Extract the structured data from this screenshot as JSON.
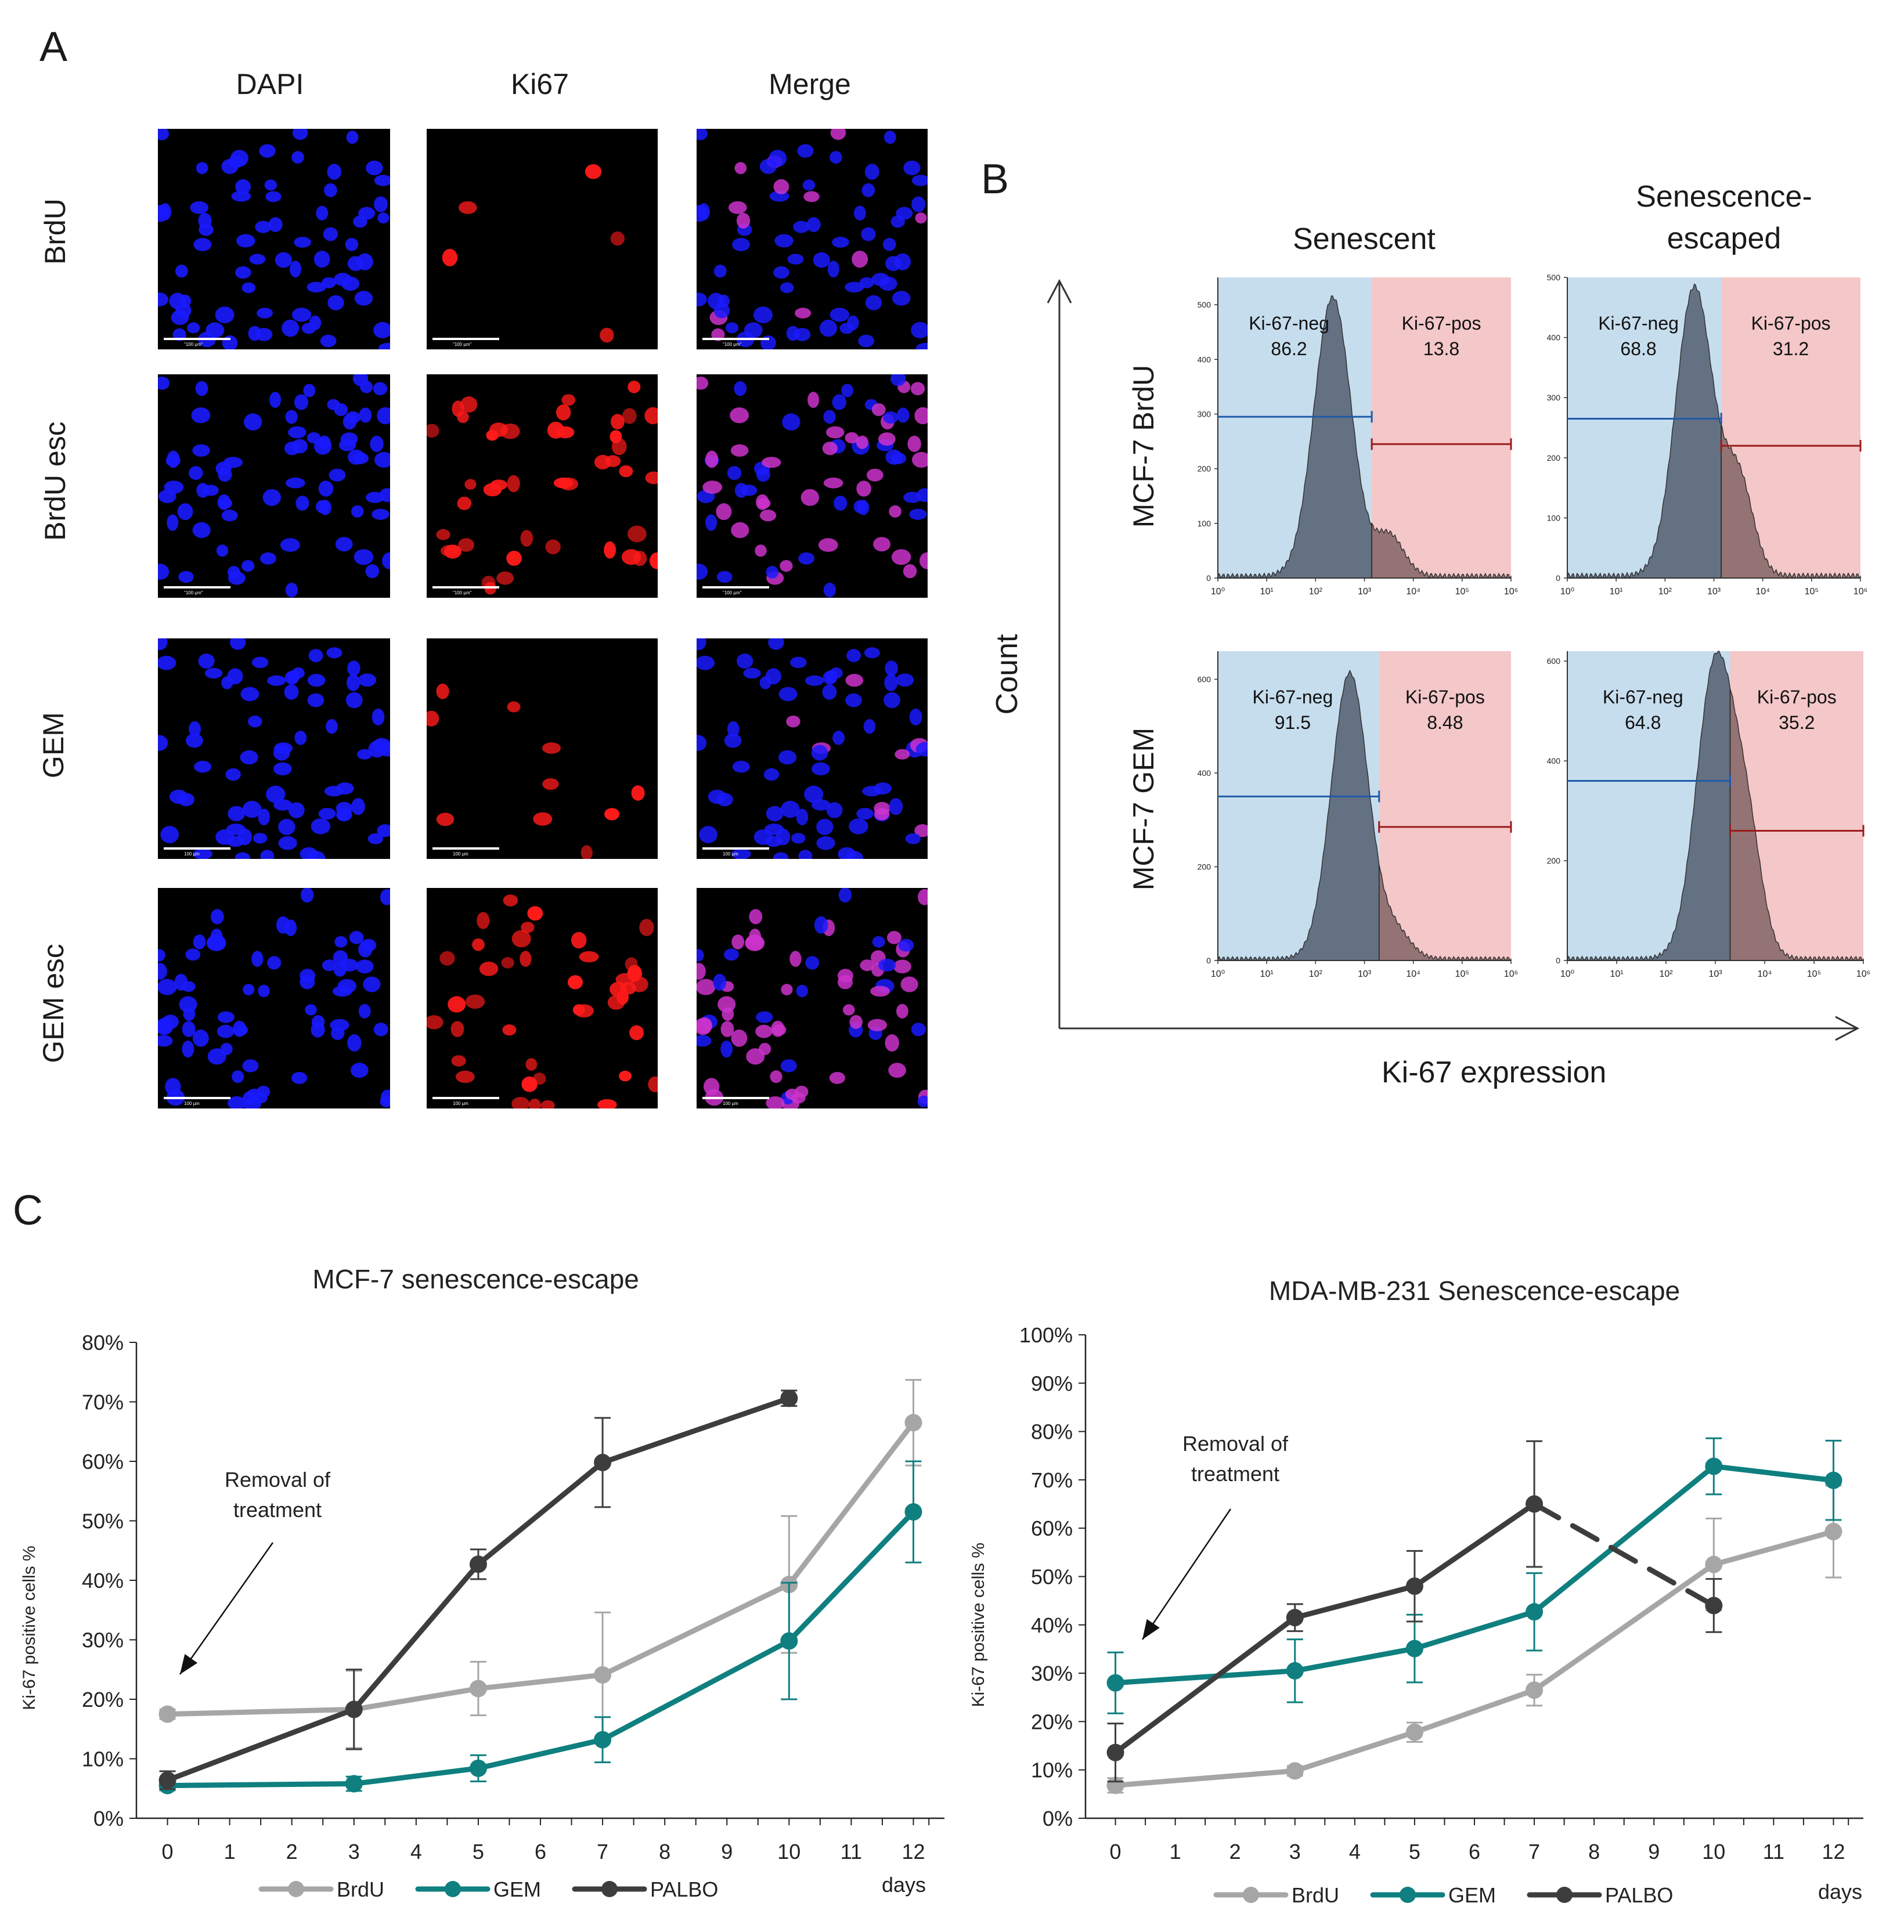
{
  "panel_a": {
    "letter": "A",
    "columns": [
      "DAPI",
      "Ki67",
      "Merge"
    ],
    "rows": [
      "BrdU",
      "BrdU esc",
      "GEM",
      "GEM esc"
    ],
    "scale_bars": [
      [
        "\"100 µm\"",
        "\"100 µm\"",
        "\"100 µm\""
      ],
      [
        "\"100 µm\"",
        "\"100 µm\"",
        "\"100 µm\""
      ],
      [
        "100 µm",
        "100 µm",
        "100 µm"
      ],
      [
        "100 µm",
        "100 µm",
        "100 µm"
      ]
    ],
    "colors": {
      "dapi": "#1a1aff",
      "ki67": "#ff1a1a",
      "merge": "#cc33cc"
    }
  },
  "panel_b": {
    "letter": "B",
    "column_titles": [
      "Senescent",
      "Senescence-\nescaped"
    ],
    "row_titles": [
      "MCF-7 BrdU",
      "MCF-7 GEM"
    ],
    "y_axis_label": "Count",
    "x_axis_label": "Ki-67 expression",
    "x_ticks": [
      "10⁰",
      "10¹",
      "10²",
      "10³",
      "10⁴",
      "10⁵",
      "10⁶"
    ],
    "histograms": [
      {
        "row": 0,
        "col": 0,
        "y_ticks": [
          "0",
          "100",
          "200",
          "300",
          "400",
          "500"
        ],
        "ymax": 550,
        "gate_log": 3.15,
        "neg_label": "Ki-67-neg",
        "neg_value": "86.2",
        "pos_label": "Ki-67-pos",
        "pos_value": "13.8",
        "peak_log": 2.35,
        "peak_count": 510,
        "neg_bar": 295,
        "pos_bar": 245
      },
      {
        "row": 0,
        "col": 1,
        "y_ticks": [
          "0",
          "100",
          "200",
          "300",
          "400",
          "500"
        ],
        "ymax": 500,
        "gate_log": 3.15,
        "neg_label": "Ki-67-neg",
        "neg_value": "68.8",
        "pos_label": "Ki-67-pos",
        "pos_value": "31.2",
        "peak_log": 2.6,
        "peak_count": 480,
        "neg_bar": 265,
        "pos_bar": 220
      },
      {
        "row": 1,
        "col": 0,
        "y_ticks": [
          "0",
          "200",
          "400",
          "600"
        ],
        "ymax": 660,
        "gate_log": 3.3,
        "neg_label": "Ki-67-neg",
        "neg_value": "91.5",
        "pos_label": "Ki-67-pos",
        "pos_value": "8.48",
        "peak_log": 2.7,
        "peak_count": 610,
        "neg_bar": 350,
        "pos_bar": 285
      },
      {
        "row": 1,
        "col": 1,
        "y_ticks": [
          "0",
          "200",
          "400",
          "600"
        ],
        "ymax": 620,
        "gate_log": 3.3,
        "neg_label": "Ki-67-neg",
        "neg_value": "64.8",
        "pos_label": "Ki-67-pos",
        "pos_value": "35.2",
        "peak_log": 3.0,
        "peak_count": 590,
        "neg_bar": 360,
        "pos_bar": 260
      }
    ],
    "colors": {
      "neg_bg": "#c6ddee",
      "pos_bg": "#f4c7c8",
      "fill": "#5a6677",
      "neg_line": "#1f5aa8",
      "pos_line": "#9b1b1b"
    }
  },
  "panel_c": {
    "letter": "C",
    "x_unit_label": "days",
    "annotation": [
      "Removal of",
      "treatment"
    ],
    "colors": {
      "BrdU": "#a6a6a6",
      "GEM": "#0f7f7f",
      "PALBO": "#3d3d3d"
    }
  },
  "chart_data": [
    {
      "type": "line",
      "title": "MCF-7 senescence-escape",
      "xlabel": "days",
      "ylabel": "Ki-67 positive cells %",
      "x_ticks": [
        0,
        1,
        2,
        3,
        4,
        5,
        6,
        7,
        8,
        9,
        10,
        11,
        12
      ],
      "xlim": [
        -0.5,
        12.5
      ],
      "ylim": [
        0,
        80
      ],
      "y_ticks": [
        "0%",
        "10%",
        "20%",
        "30%",
        "40%",
        "50%",
        "60%",
        "70%",
        "80%"
      ],
      "legend_position": "bottom",
      "series": [
        {
          "name": "BrdU",
          "x": [
            0,
            3,
            5,
            7,
            10,
            12
          ],
          "y": [
            17.5,
            18.3,
            21.8,
            24.1,
            39.3,
            66.5
          ],
          "err": [
            0.8,
            6.5,
            4.5,
            10.5,
            11.5,
            7.2
          ],
          "dashed_last": false
        },
        {
          "name": "GEM",
          "x": [
            0,
            3,
            5,
            7,
            10,
            12
          ],
          "y": [
            5.5,
            5.8,
            8.4,
            13.2,
            29.8,
            51.5
          ],
          "err": [
            0.8,
            1.2,
            2.2,
            3.8,
            9.8,
            8.5
          ],
          "dashed_last": false
        },
        {
          "name": "PALBO",
          "x": [
            0,
            3,
            5,
            7,
            10
          ],
          "y": [
            6.4,
            18.3,
            42.7,
            59.8,
            70.6
          ],
          "err": [
            1.5,
            6.7,
            2.5,
            7.5,
            1.3
          ],
          "dashed_last": false
        }
      ]
    },
    {
      "type": "line",
      "title": "MDA-MB-231 Senescence-escape",
      "xlabel": "days",
      "ylabel": "Ki-67 positive cells %",
      "x_ticks": [
        0,
        1,
        2,
        3,
        4,
        5,
        6,
        7,
        8,
        9,
        10,
        11,
        12
      ],
      "xlim": [
        -0.5,
        12.5
      ],
      "ylim": [
        0,
        100
      ],
      "y_ticks": [
        "0%",
        "10%",
        "20%",
        "30%",
        "40%",
        "50%",
        "60%",
        "70%",
        "80%",
        "90%",
        "100%"
      ],
      "legend_position": "bottom",
      "series": [
        {
          "name": "BrdU",
          "x": [
            0,
            3,
            5,
            7,
            10,
            12
          ],
          "y": [
            6.8,
            9.8,
            17.8,
            26.5,
            52.5,
            59.3
          ],
          "err": [
            1.5,
            1.0,
            2.0,
            3.2,
            9.5,
            9.5
          ],
          "dashed_last": false
        },
        {
          "name": "GEM",
          "x": [
            0,
            3,
            5,
            7,
            10,
            12
          ],
          "y": [
            28.0,
            30.5,
            35.1,
            42.7,
            72.8,
            69.9
          ],
          "err": [
            6.3,
            6.5,
            7.0,
            8.0,
            5.8,
            8.2
          ],
          "dashed_last": false
        },
        {
          "name": "PALBO",
          "x": [
            0,
            3,
            5,
            7,
            10
          ],
          "y": [
            13.6,
            41.5,
            48.0,
            65.0,
            44.0
          ],
          "err": [
            6.0,
            2.8,
            7.3,
            13.0,
            5.5
          ],
          "dashed_last": true
        }
      ]
    }
  ]
}
